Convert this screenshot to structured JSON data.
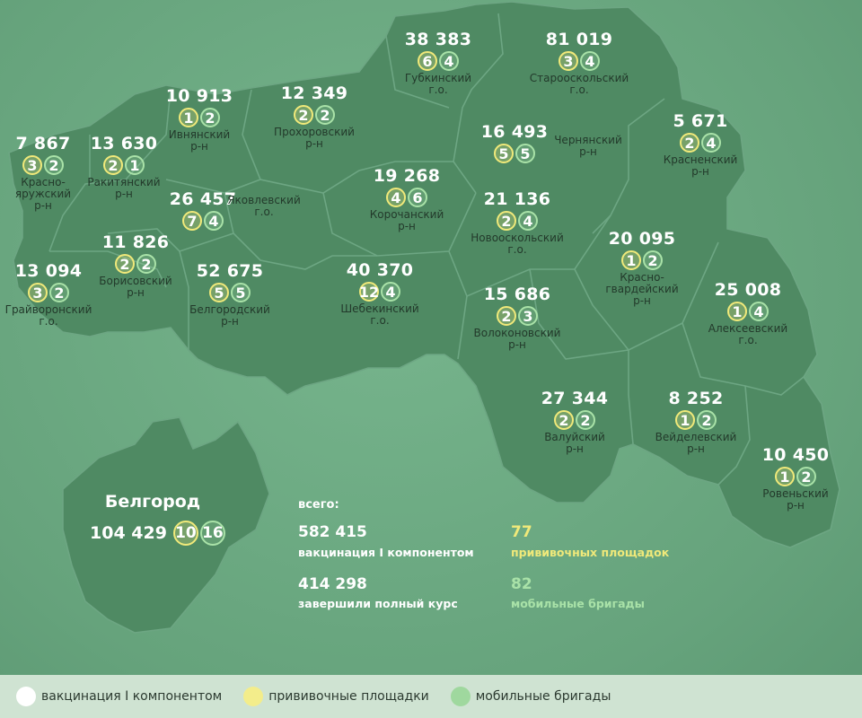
{
  "colors": {
    "vaccination": "#ffffff",
    "sites": "#f0e97a",
    "brigades": "#a9e2a8",
    "map_fill": "#4f8a63",
    "background": "#6fae86"
  },
  "districts": [
    {
      "id": "gubkinsky",
      "value": "38 383",
      "sites": "6",
      "brigades": "4",
      "name": "Губкинский\nг.о."
    },
    {
      "id": "starooskolsky",
      "value": "81 019",
      "sites": "3",
      "brigades": "4",
      "name": "Старооскольский\nг.о."
    },
    {
      "id": "ivnyansky",
      "value": "10 913",
      "sites": "1",
      "brigades": "2",
      "name": "Ивнянский\nр-н"
    },
    {
      "id": "prokhorovsky",
      "value": "12 349",
      "sites": "2",
      "brigades": "2",
      "name": "Прохоровский\nр-н"
    },
    {
      "id": "chernyansky",
      "value": "16 493",
      "sites": "5",
      "brigades": "5",
      "name": "Чернянский\nр-н"
    },
    {
      "id": "krasnensky",
      "value": "5 671",
      "sites": "2",
      "brigades": "4",
      "name": "Красненский\nр-н"
    },
    {
      "id": "krasnoyaruzhsky",
      "value": "7 867",
      "sites": "3",
      "brigades": "2",
      "name": "Красно-\nяружский\nр-н"
    },
    {
      "id": "rakityansky",
      "value": "13 630",
      "sites": "2",
      "brigades": "1",
      "name": "Ракитянский\nр-н"
    },
    {
      "id": "korochansky",
      "value": "19 268",
      "sites": "4",
      "brigades": "6",
      "name": "Корочанский\nр-н"
    },
    {
      "id": "yakovlevsky",
      "value": "26 457",
      "sites": "7",
      "brigades": "4",
      "name": "Яковлевский\nг.о."
    },
    {
      "id": "novooskolsky",
      "value": "21 136",
      "sites": "2",
      "brigades": "4",
      "name": "Новооскольский\nг.о."
    },
    {
      "id": "borisovsky",
      "value": "11 826",
      "sites": "2",
      "brigades": "2",
      "name": "Борисовский\nр-н"
    },
    {
      "id": "krasnogvardeysky",
      "value": "20 095",
      "sites": "1",
      "brigades": "2",
      "name": "Красно-\nгвардейский\nр-н"
    },
    {
      "id": "grayvoronsky",
      "value": "13 094",
      "sites": "3",
      "brigades": "2",
      "name": "Грайворонский\nг.о."
    },
    {
      "id": "belgorodsky",
      "value": "52 675",
      "sites": "5",
      "brigades": "5",
      "name": "Белгородский\nр-н"
    },
    {
      "id": "shebekinsky",
      "value": "40 370",
      "sites": "12",
      "brigades": "4",
      "name": "Шебекинский\nг.о."
    },
    {
      "id": "alekseevsky",
      "value": "25 008",
      "sites": "1",
      "brigades": "4",
      "name": "Алексеевский\nг.о."
    },
    {
      "id": "volokonovsky",
      "value": "15 686",
      "sites": "2",
      "brigades": "3",
      "name": "Волоконовский\nр-н"
    },
    {
      "id": "valuysky",
      "value": "27 344",
      "sites": "2",
      "brigades": "2",
      "name": "Валуйский\nр-н"
    },
    {
      "id": "veydelevsky",
      "value": "8 252",
      "sites": "1",
      "brigades": "2",
      "name": "Вейделевский\nр-н"
    },
    {
      "id": "rovensky",
      "value": "10 450",
      "sites": "1",
      "brigades": "2",
      "name": "Ровеньский\nр-н"
    }
  ],
  "city": {
    "name": "Белгород",
    "value": "104 429",
    "sites": "10",
    "brigades": "16"
  },
  "totals": {
    "heading": "всего:",
    "vaccinated_value": "582 415",
    "vaccinated_label": "вакцинация I компонентом",
    "completed_value": "414 298",
    "completed_label": "завершили полный курс",
    "sites_value": "77",
    "sites_label": "прививочных площадок",
    "brigades_value": "82",
    "brigades_label": "мобильные бригады"
  },
  "legend": [
    {
      "label": "вакцинация I компонентом",
      "color": "white"
    },
    {
      "label": "прививочные площадки",
      "color": "yellow"
    },
    {
      "label": "мобильные бригады",
      "color": "green"
    }
  ]
}
